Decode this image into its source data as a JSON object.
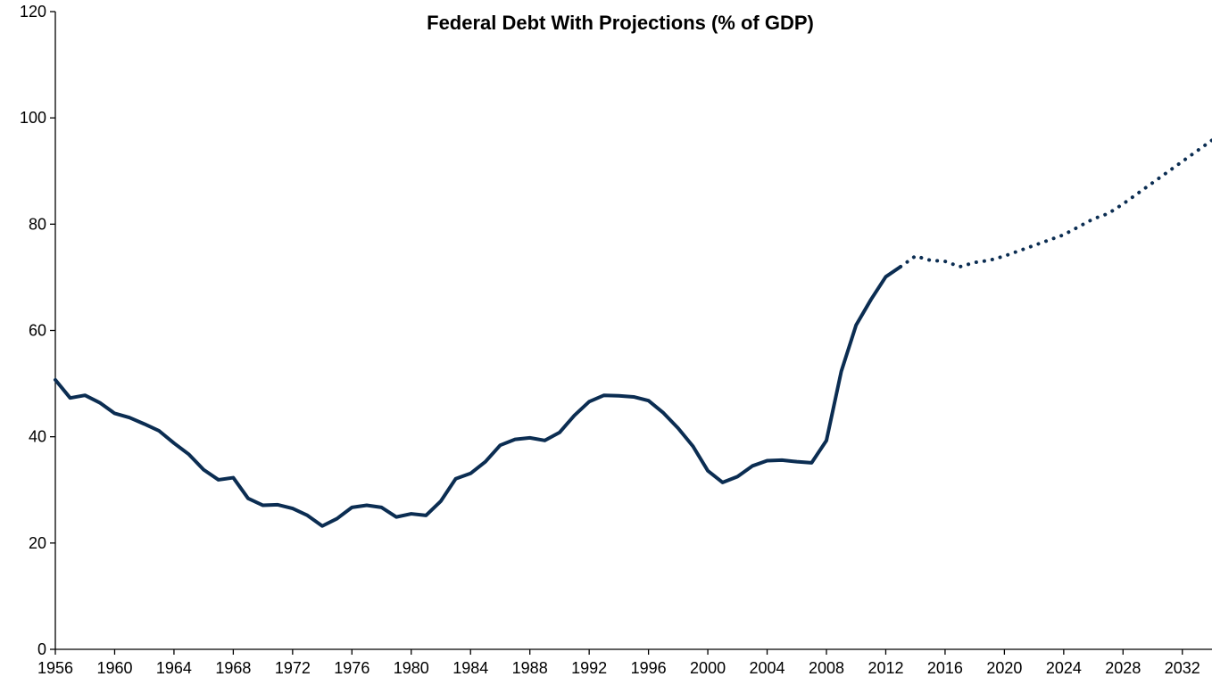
{
  "chart_data": {
    "type": "line",
    "title": "Federal Debt With Projections (% of GDP)",
    "xlabel": "",
    "ylabel": "",
    "xlim": [
      1956,
      2034
    ],
    "ylim": [
      0,
      120
    ],
    "x_ticks": [
      1956,
      1960,
      1964,
      1968,
      1972,
      1976,
      1980,
      1984,
      1988,
      1992,
      1996,
      2000,
      2004,
      2008,
      2012,
      2016,
      2020,
      2024,
      2028,
      2032
    ],
    "y_ticks": [
      0,
      20,
      40,
      60,
      80,
      100,
      120
    ],
    "grid": false,
    "legend": "none",
    "line_color": "#0b2d52",
    "series": [
      {
        "style": "solid",
        "x": [
          1956,
          1957,
          1958,
          1959,
          1960,
          1961,
          1962,
          1963,
          1964,
          1965,
          1966,
          1967,
          1968,
          1969,
          1970,
          1971,
          1972,
          1973,
          1974,
          1975,
          1976,
          1977,
          1978,
          1979,
          1980,
          1981,
          1982,
          1983,
          1984,
          1985,
          1986,
          1987,
          1988,
          1989,
          1990,
          1991,
          1992,
          1993,
          1994,
          1995,
          1996,
          1997,
          1998,
          1999,
          2000,
          2001,
          2002,
          2003,
          2004,
          2005,
          2006,
          2007,
          2008,
          2009,
          2010,
          2011,
          2012,
          2013
        ],
        "values": [
          50.7,
          47.3,
          47.8,
          46.4,
          44.4,
          43.6,
          42.4,
          41.1,
          38.8,
          36.7,
          33.8,
          31.9,
          32.3,
          28.4,
          27.1,
          27.2,
          26.5,
          25.2,
          23.2,
          24.6,
          26.7,
          27.1,
          26.7,
          24.9,
          25.5,
          25.2,
          27.9,
          32.1,
          33.1,
          35.3,
          38.4,
          39.5,
          39.8,
          39.3,
          40.8,
          44.0,
          46.6,
          47.8,
          47.7,
          47.5,
          46.8,
          44.5,
          41.6,
          38.2,
          33.6,
          31.4,
          32.5,
          34.5,
          35.5,
          35.6,
          35.3,
          35.1,
          39.3,
          52.3,
          61.0,
          65.8,
          70.1,
          72.0
        ]
      },
      {
        "style": "dotted",
        "x": [
          2013,
          2014,
          2015,
          2016,
          2017,
          2018,
          2019,
          2020,
          2021,
          2022,
          2023,
          2024,
          2025,
          2026,
          2027,
          2028,
          2029,
          2030,
          2031,
          2032,
          2033,
          2034
        ],
        "values": [
          72.0,
          74.0,
          73.2,
          73.0,
          72.0,
          72.8,
          73.2,
          74.0,
          75.0,
          76.0,
          77.0,
          78.0,
          79.5,
          81.0,
          82.0,
          83.8,
          85.8,
          87.8,
          89.8,
          91.8,
          93.8,
          95.8
        ]
      }
    ]
  }
}
